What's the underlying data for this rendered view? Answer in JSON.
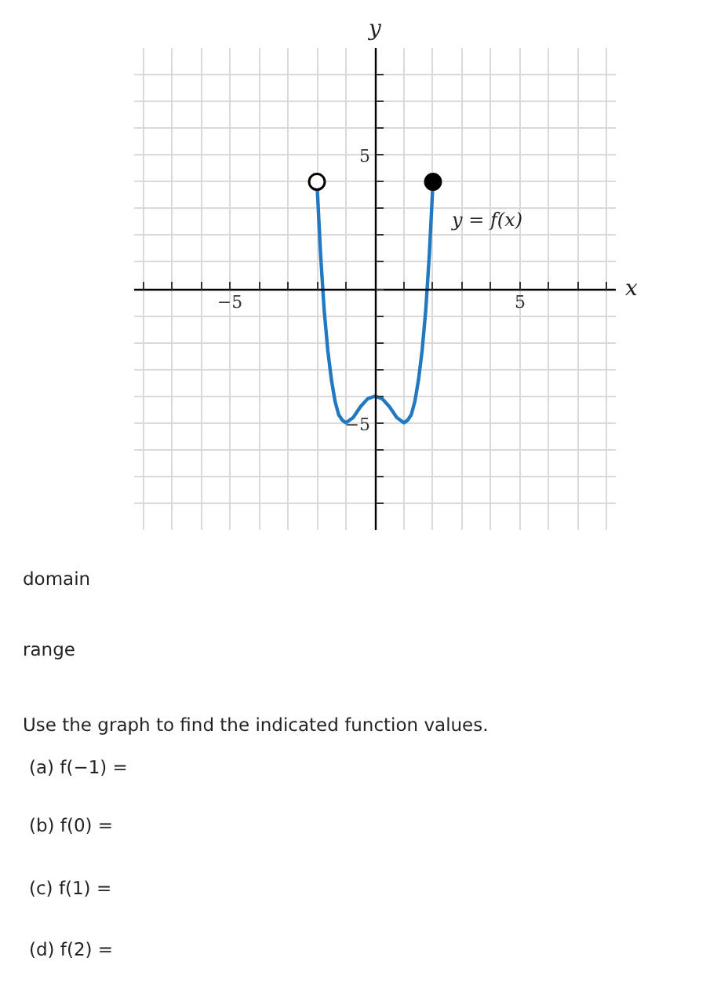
{
  "chart_data": {
    "type": "line",
    "xlabel": "x",
    "ylabel": "y",
    "xlim": [
      -8.3,
      8.3
    ],
    "ylim": [
      -9,
      9
    ],
    "xticks": [
      {
        "value": -8,
        "label": null
      },
      {
        "value": -7,
        "label": null
      },
      {
        "value": -6,
        "label": null
      },
      {
        "value": -5,
        "label": "−5"
      },
      {
        "value": -4,
        "label": null
      },
      {
        "value": -3,
        "label": null
      },
      {
        "value": -2,
        "label": null
      },
      {
        "value": -1,
        "label": null
      },
      {
        "value": 0,
        "label": null
      },
      {
        "value": 1,
        "label": null
      },
      {
        "value": 2,
        "label": null
      },
      {
        "value": 3,
        "label": null
      },
      {
        "value": 4,
        "label": null
      },
      5,
      {
        "value": 6,
        "label": null
      },
      {
        "value": 7,
        "label": null
      },
      {
        "value": 8,
        "label": null
      }
    ],
    "yticks": [
      {
        "value": -8,
        "label": null
      },
      {
        "value": -7,
        "label": null
      },
      {
        "value": -6,
        "label": null
      },
      {
        "value": -5,
        "label": "−5"
      },
      {
        "value": -4,
        "label": null
      },
      {
        "value": -3,
        "label": null
      },
      {
        "value": -2,
        "label": null
      },
      {
        "value": -1,
        "label": null
      },
      {
        "value": 0,
        "label": null
      },
      {
        "value": 1,
        "label": null
      },
      {
        "value": 2,
        "label": null
      },
      {
        "value": 3,
        "label": null
      },
      {
        "value": 4,
        "label": null
      },
      5,
      {
        "value": 6,
        "label": null
      },
      {
        "value": 7,
        "label": null
      },
      {
        "value": 8,
        "label": null
      }
    ],
    "grid": true,
    "series": [
      {
        "name": "y = f(x)",
        "color": "#2379c1",
        "x": [
          -2,
          -1.875,
          -1.75,
          -1.625,
          -1.5,
          -1.375,
          -1.25,
          -1.125,
          -1,
          -0.75,
          -0.5,
          -0.25,
          0,
          0.25,
          0.5,
          0.75,
          1,
          1.125,
          1.25,
          1.375,
          1.5,
          1.625,
          1.75,
          1.875,
          2
        ],
        "values": [
          4,
          1.3,
          -0.8,
          -2.3,
          -3.4,
          -4.2,
          -4.7,
          -4.9,
          -5,
          -4.8,
          -4.4,
          -4.1,
          -4,
          -4.1,
          -4.4,
          -4.8,
          -5,
          -4.9,
          -4.7,
          -4.2,
          -3.4,
          -2.3,
          -0.8,
          1.3,
          4
        ]
      },
      {
        "type": "scatter",
        "marker": "circle",
        "color": "#ffffff",
        "x": [
          -2
        ],
        "values": [
          4
        ]
      },
      {
        "type": "scatter",
        "marker": "circle",
        "color": "#000000",
        "x": [
          2
        ],
        "values": [
          4
        ]
      }
    ],
    "annotations": [
      "domain",
      "range",
      "Use the graph to find the indicated function values.",
      "(a) f(−1) =",
      "(b) f(0) =",
      "(c) f(1) =",
      "(d) f(2) ="
    ]
  }
}
